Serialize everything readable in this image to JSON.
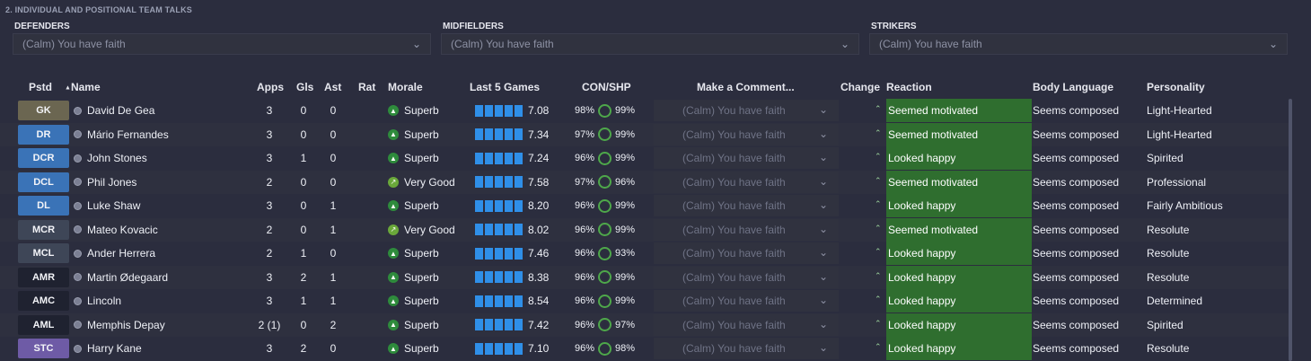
{
  "section_title": "2. INDIVIDUAL AND POSITIONAL TEAM TALKS",
  "groups": [
    {
      "label": "DEFENDERS",
      "value": "(Calm) You have faith"
    },
    {
      "label": "MIDFIELDERS",
      "value": "(Calm) You have faith"
    },
    {
      "label": "STRIKERS",
      "value": "(Calm) You have faith"
    }
  ],
  "columns": {
    "pos": "Pstd",
    "name": "Name",
    "apps": "Apps",
    "gls": "Gls",
    "ast": "Ast",
    "rat": "Rat",
    "morale": "Morale",
    "last5": "Last 5 Games",
    "conshp": "CON/SHP",
    "comment": "Make a Comment...",
    "change": "Change",
    "reaction": "Reaction",
    "body": "Body Language",
    "personality": "Personality"
  },
  "colors": {
    "position_gk": "#6b6651",
    "position_def": "#3a73b7",
    "position_mid": "#3e4657",
    "position_att": "#1f2230",
    "position_st": "#6e5ba6",
    "reaction_bg": "#2f6e2f",
    "form_bars": "#2f8fe8",
    "morale_superb": "#2e8b3c",
    "morale_verygood": "#6aa83a"
  },
  "players": [
    {
      "pos": "GK",
      "pos_color": "#6b6651",
      "name": "David De Gea",
      "apps": "3",
      "gls": "0",
      "ast": "0",
      "morale": "Superb",
      "morale_icon": "arrow-up-icon",
      "form": "7.08",
      "con": "98%",
      "shp": "99%",
      "comment": "(Calm) You have faith",
      "reaction": "Seemed motivated",
      "body": "Seems composed",
      "personality": "Light-Hearted"
    },
    {
      "pos": "DR",
      "pos_color": "#3a73b7",
      "name": "Mário Fernandes",
      "apps": "3",
      "gls": "0",
      "ast": "0",
      "morale": "Superb",
      "morale_icon": "arrow-up-icon",
      "form": "7.34",
      "con": "97%",
      "shp": "99%",
      "comment": "(Calm) You have faith",
      "reaction": "Seemed motivated",
      "body": "Seems composed",
      "personality": "Light-Hearted"
    },
    {
      "pos": "DCR",
      "pos_color": "#3a73b7",
      "name": "John Stones",
      "apps": "3",
      "gls": "1",
      "ast": "0",
      "morale": "Superb",
      "morale_icon": "arrow-up-icon",
      "form": "7.24",
      "con": "96%",
      "shp": "99%",
      "comment": "(Calm) You have faith",
      "reaction": "Looked happy",
      "body": "Seems composed",
      "personality": "Spirited"
    },
    {
      "pos": "DCL",
      "pos_color": "#3a73b7",
      "name": "Phil Jones",
      "apps": "2",
      "gls": "0",
      "ast": "0",
      "morale": "Very Good",
      "morale_icon": "arrow-diagonal-icon",
      "form": "7.58",
      "con": "97%",
      "shp": "96%",
      "comment": "(Calm) You have faith",
      "reaction": "Seemed motivated",
      "body": "Seems composed",
      "personality": "Professional"
    },
    {
      "pos": "DL",
      "pos_color": "#3a73b7",
      "name": "Luke Shaw",
      "apps": "3",
      "gls": "0",
      "ast": "1",
      "morale": "Superb",
      "morale_icon": "arrow-up-icon",
      "form": "8.20",
      "con": "96%",
      "shp": "99%",
      "comment": "(Calm) You have faith",
      "reaction": "Looked happy",
      "body": "Seems composed",
      "personality": "Fairly Ambitious"
    },
    {
      "pos": "MCR",
      "pos_color": "#3e4657",
      "name": "Mateo Kovacic",
      "apps": "2",
      "gls": "0",
      "ast": "1",
      "morale": "Very Good",
      "morale_icon": "arrow-diagonal-icon",
      "form": "8.02",
      "con": "96%",
      "shp": "99%",
      "comment": "(Calm) You have faith",
      "reaction": "Seemed motivated",
      "body": "Seems composed",
      "personality": "Resolute"
    },
    {
      "pos": "MCL",
      "pos_color": "#3e4657",
      "name": "Ander Herrera",
      "apps": "2",
      "gls": "1",
      "ast": "0",
      "morale": "Superb",
      "morale_icon": "arrow-up-icon",
      "form": "7.46",
      "con": "96%",
      "shp": "93%",
      "comment": "(Calm) You have faith",
      "reaction": "Looked happy",
      "body": "Seems composed",
      "personality": "Resolute"
    },
    {
      "pos": "AMR",
      "pos_color": "#1f2230",
      "name": "Martin Ødegaard",
      "apps": "3",
      "gls": "2",
      "ast": "1",
      "morale": "Superb",
      "morale_icon": "arrow-up-icon",
      "form": "8.38",
      "con": "96%",
      "shp": "99%",
      "comment": "(Calm) You have faith",
      "reaction": "Looked happy",
      "body": "Seems composed",
      "personality": "Resolute"
    },
    {
      "pos": "AMC",
      "pos_color": "#1f2230",
      "name": "Lincoln",
      "apps": "3",
      "gls": "1",
      "ast": "1",
      "morale": "Superb",
      "morale_icon": "arrow-up-icon",
      "form": "8.54",
      "con": "96%",
      "shp": "99%",
      "comment": "(Calm) You have faith",
      "reaction": "Looked happy",
      "body": "Seems composed",
      "personality": "Determined"
    },
    {
      "pos": "AML",
      "pos_color": "#1f2230",
      "name": "Memphis Depay",
      "apps": "2 (1)",
      "gls": "0",
      "ast": "2",
      "morale": "Superb",
      "morale_icon": "arrow-up-icon",
      "form": "7.42",
      "con": "96%",
      "shp": "97%",
      "comment": "(Calm) You have faith",
      "reaction": "Looked happy",
      "body": "Seems composed",
      "personality": "Spirited"
    },
    {
      "pos": "STC",
      "pos_color": "#6e5ba6",
      "name": "Harry Kane",
      "apps": "3",
      "gls": "2",
      "ast": "0",
      "morale": "Superb",
      "morale_icon": "arrow-up-icon",
      "form": "7.10",
      "con": "96%",
      "shp": "98%",
      "comment": "(Calm) You have faith",
      "reaction": "Looked happy",
      "body": "Seems composed",
      "personality": "Resolute"
    }
  ]
}
